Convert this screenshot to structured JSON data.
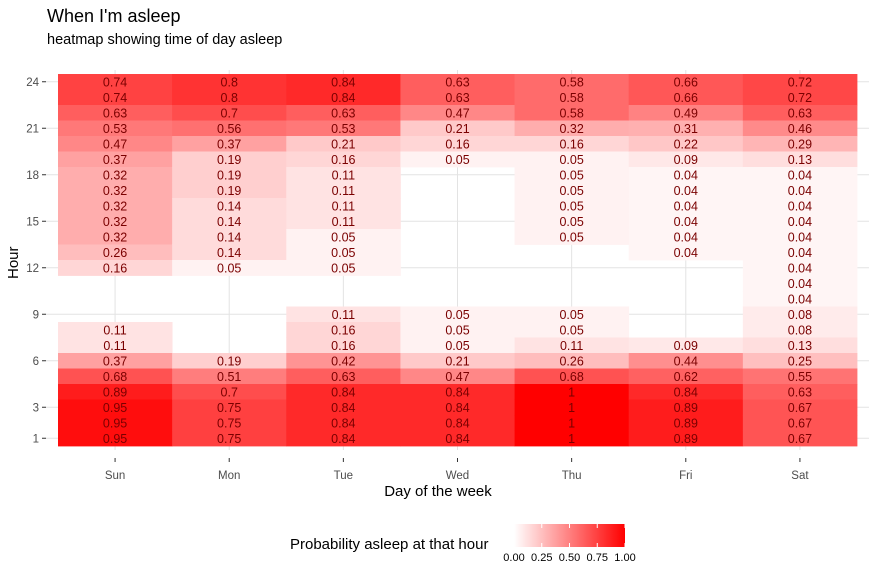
{
  "chart_data": {
    "type": "heatmap",
    "title": "When I'm asleep",
    "subtitle": "heatmap showing time of day asleep",
    "xlabel": "Day of the week",
    "ylabel": "Hour",
    "x_categories": [
      "Sun",
      "Mon",
      "Tue",
      "Wed",
      "Thu",
      "Fri",
      "Sat"
    ],
    "y_ticks": [
      1,
      3,
      6,
      9,
      12,
      15,
      18,
      21,
      24
    ],
    "ylim": [
      0.5,
      24.5
    ],
    "hours": [
      24,
      23,
      22,
      21,
      20,
      19,
      18,
      17,
      16,
      15,
      14,
      13,
      12,
      11,
      10,
      9,
      8,
      7,
      6,
      5,
      4,
      3,
      2,
      1
    ],
    "values": {
      "Sun": [
        0.74,
        0.74,
        0.63,
        0.53,
        0.47,
        0.37,
        0.32,
        0.32,
        0.32,
        0.32,
        0.32,
        0.26,
        0.16,
        null,
        null,
        null,
        0.11,
        0.11,
        0.37,
        0.68,
        0.89,
        0.95,
        0.95,
        0.95
      ],
      "Mon": [
        0.8,
        0.8,
        0.7,
        0.56,
        0.37,
        0.19,
        0.19,
        0.19,
        0.14,
        0.14,
        0.14,
        0.14,
        0.05,
        null,
        null,
        null,
        null,
        null,
        0.19,
        0.51,
        0.7,
        0.75,
        0.75,
        0.75
      ],
      "Tue": [
        0.84,
        0.84,
        0.63,
        0.53,
        0.21,
        0.16,
        0.11,
        0.11,
        0.11,
        0.11,
        0.05,
        0.05,
        0.05,
        null,
        null,
        0.11,
        0.16,
        0.16,
        0.42,
        0.63,
        0.84,
        0.84,
        0.84,
        0.84
      ],
      "Wed": [
        0.63,
        0.63,
        0.47,
        0.21,
        0.16,
        0.05,
        null,
        null,
        null,
        null,
        null,
        null,
        null,
        null,
        null,
        0.05,
        0.05,
        0.05,
        0.21,
        0.47,
        0.84,
        0.84,
        0.84,
        0.84
      ],
      "Thu": [
        0.58,
        0.58,
        0.58,
        0.32,
        0.16,
        0.05,
        0.05,
        0.05,
        0.05,
        0.05,
        0.05,
        null,
        null,
        null,
        null,
        0.05,
        0.05,
        0.11,
        0.26,
        0.68,
        1,
        1,
        1,
        1
      ],
      "Fri": [
        0.66,
        0.66,
        0.49,
        0.31,
        0.22,
        0.09,
        0.04,
        0.04,
        0.04,
        0.04,
        0.04,
        0.04,
        null,
        null,
        null,
        null,
        null,
        0.09,
        0.44,
        0.62,
        0.84,
        0.89,
        0.89,
        0.89
      ],
      "Sat": [
        0.72,
        0.72,
        0.63,
        0.46,
        0.29,
        0.13,
        0.04,
        0.04,
        0.04,
        0.04,
        0.04,
        0.04,
        0.04,
        0.04,
        0.04,
        0.08,
        0.08,
        0.13,
        0.25,
        0.55,
        0.63,
        0.67,
        0.67,
        0.67
      ]
    },
    "color_low": "#ffffff",
    "color_high": "#ff0000",
    "legend": {
      "title": "Probability asleep at that hour",
      "placement": "bottom",
      "ticks": [
        "0.00",
        "0.25",
        "0.50",
        "0.75",
        "1.00"
      ]
    }
  }
}
